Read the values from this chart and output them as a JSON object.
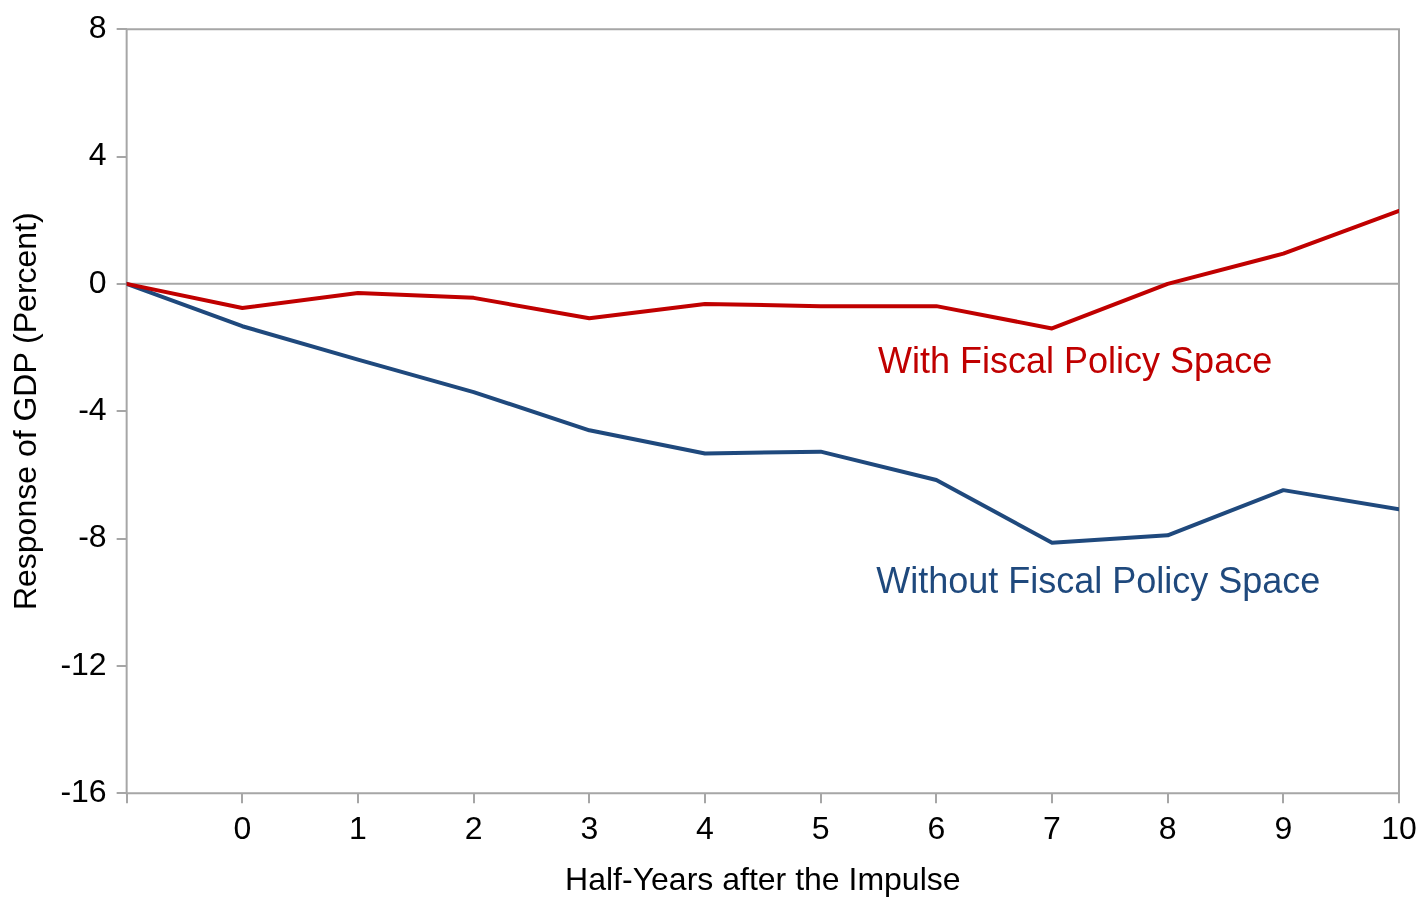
{
  "chart_data": {
    "type": "line",
    "xlabel": "Half-Years after the Impulse",
    "ylabel": "Response of GDP (Percent)",
    "x": [
      -1,
      0,
      1,
      2,
      3,
      4,
      5,
      6,
      7,
      8,
      9,
      10
    ],
    "series": [
      {
        "name": "With Fiscal Policy Space",
        "color": "#c00000",
        "values": [
          0,
          -0.76,
          -0.29,
          -0.44,
          -1.08,
          -0.63,
          -0.7,
          -0.7,
          -1.4,
          0,
          0.95,
          2.29
        ]
      },
      {
        "name": "Without Fiscal Policy Space",
        "color": "#1f497d",
        "values": [
          0,
          -1.33,
          -2.38,
          -3.4,
          -4.6,
          -5.33,
          -5.27,
          -6.16,
          -8.13,
          -7.9,
          -6.48,
          -7.08
        ]
      }
    ],
    "xlim": [
      -1,
      10
    ],
    "xticks": [
      {
        "value": -1,
        "label": null
      },
      0,
      1,
      2,
      3,
      4,
      5,
      6,
      7,
      8,
      9,
      10
    ],
    "ylim": [
      -16,
      8
    ],
    "yticks": [
      -16,
      -12,
      -8,
      -4,
      0,
      4,
      8
    ],
    "ref_lines": [
      {
        "axis": "y",
        "value": 0,
        "color": "#a6a6a6"
      }
    ],
    "grid": false,
    "legend": false,
    "marker": "none",
    "line_style": "solid"
  }
}
